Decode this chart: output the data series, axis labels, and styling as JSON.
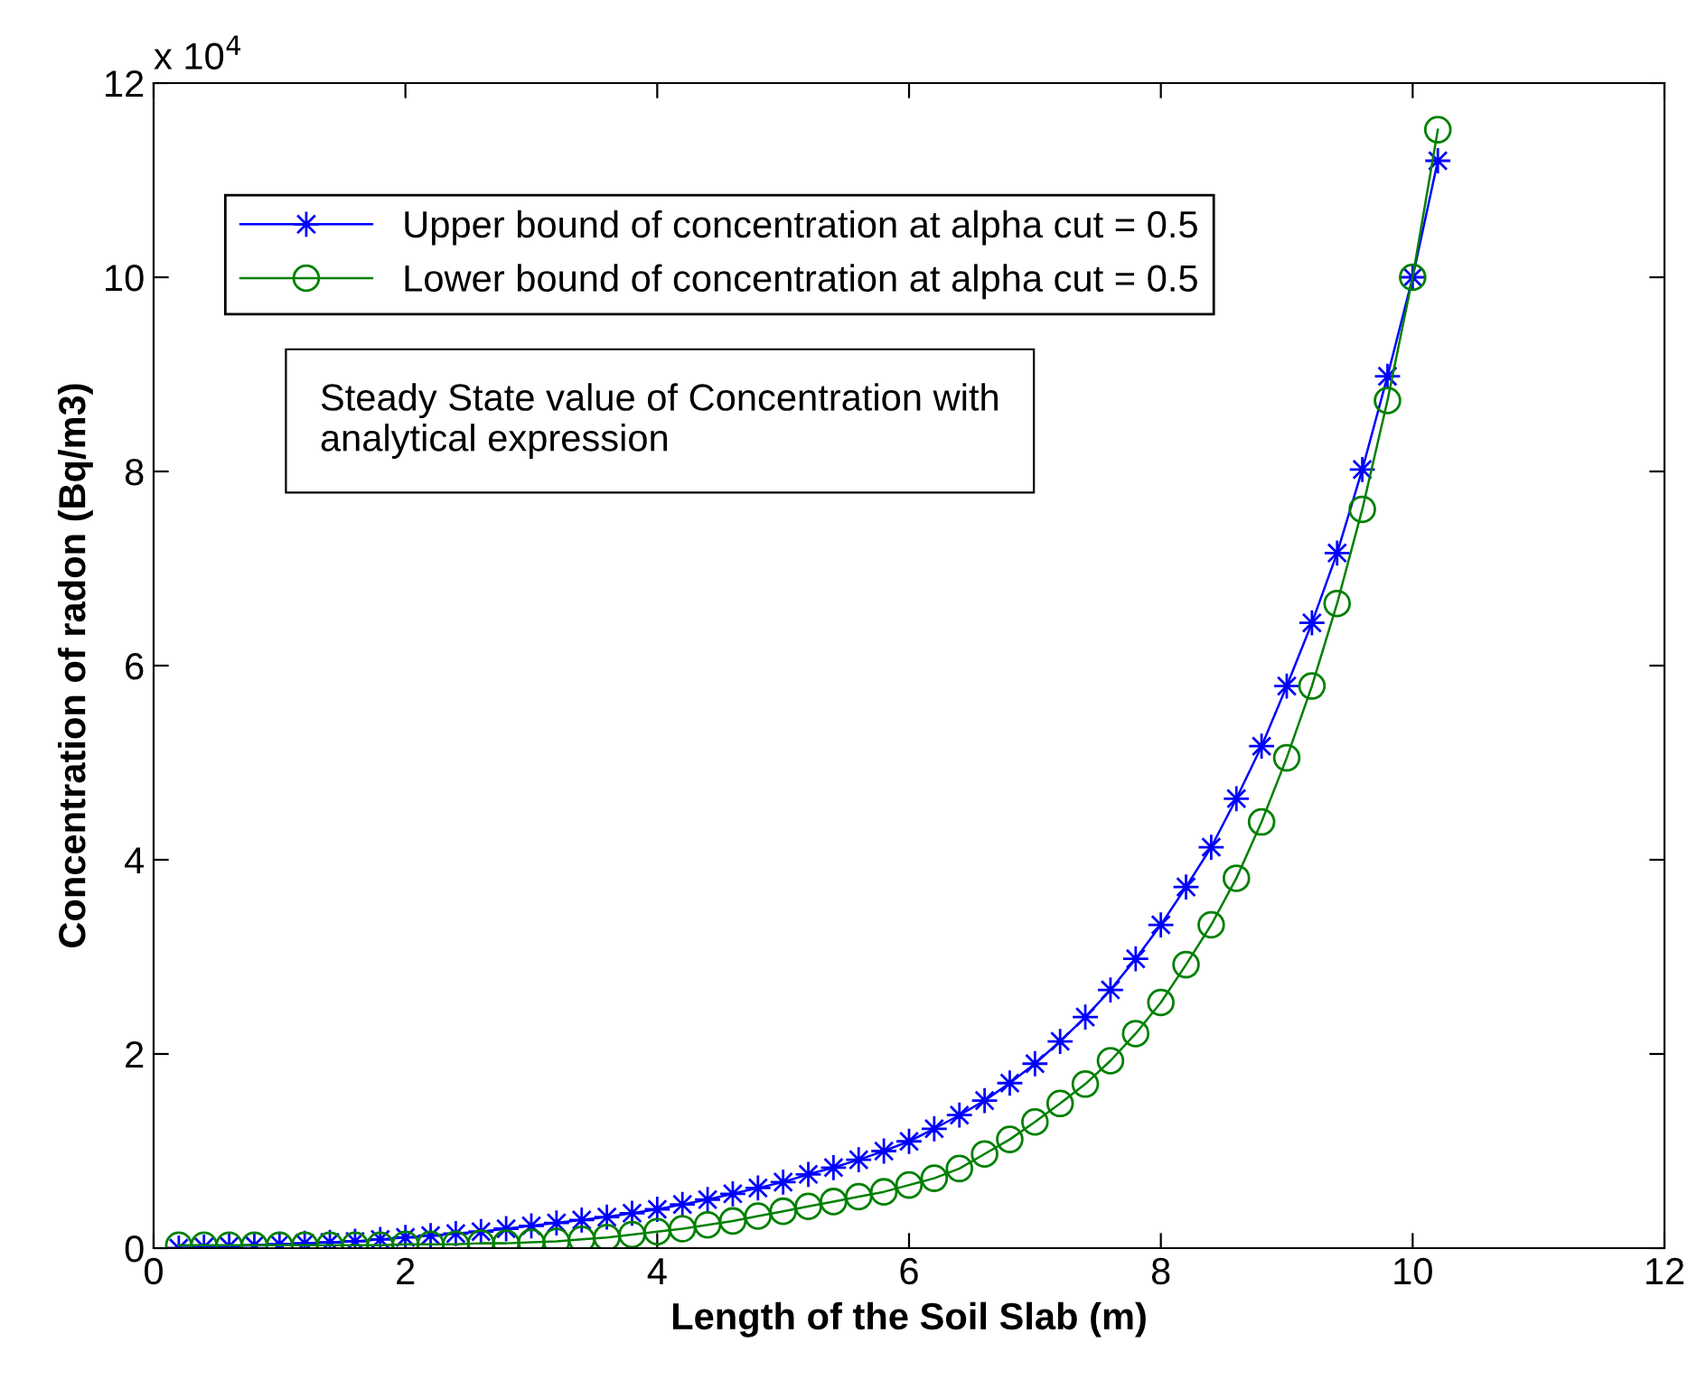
{
  "chart_data": {
    "type": "line",
    "xlabel": "Length of the Soil Slab (m)",
    "ylabel": "Concentration of radon (Bq/m3)",
    "x": [
      0.2,
      0.4,
      0.6,
      0.8,
      1.0,
      1.2,
      1.4,
      1.6,
      1.8,
      2.0,
      2.2,
      2.4,
      2.6,
      2.8,
      3.0,
      3.2,
      3.4,
      3.6,
      3.8,
      4.0,
      4.2,
      4.4,
      4.6,
      4.8,
      5.0,
      5.2,
      5.4,
      5.6,
      5.8,
      6.0,
      6.2,
      6.4,
      6.6,
      6.8,
      7.0,
      7.2,
      7.4,
      7.6,
      7.8,
      8.0,
      8.2,
      8.4,
      8.6,
      8.8,
      9.0,
      9.2,
      9.4,
      9.6,
      9.8,
      10.0,
      10.2
    ],
    "series": [
      {
        "name": "Upper bound of concentration at alpha cut = 0.5",
        "color": "#0000ff",
        "marker": "star",
        "values": [
          0,
          0.01,
          0.02,
          0.03,
          0.04,
          0.05,
          0.06,
          0.07,
          0.09,
          0.11,
          0.13,
          0.15,
          0.17,
          0.2,
          0.23,
          0.26,
          0.29,
          0.32,
          0.36,
          0.4,
          0.45,
          0.5,
          0.56,
          0.62,
          0.68,
          0.76,
          0.83,
          0.91,
          1.0,
          1.1,
          1.23,
          1.37,
          1.52,
          1.7,
          1.9,
          2.13,
          2.38,
          2.66,
          2.98,
          3.33,
          3.72,
          4.13,
          4.63,
          5.17,
          5.79,
          6.44,
          7.16,
          8.02,
          8.98,
          10.0,
          11.2
        ]
      },
      {
        "name": "Lower bound of concentration at alpha cut = 0.5",
        "color": "#008000",
        "marker": "circle",
        "values": [
          0.03,
          0.03,
          0.03,
          0.03,
          0.03,
          0.03,
          0.03,
          0.03,
          0.03,
          0.04,
          0.04,
          0.04,
          0.05,
          0.05,
          0.06,
          0.07,
          0.09,
          0.11,
          0.14,
          0.17,
          0.2,
          0.24,
          0.28,
          0.33,
          0.38,
          0.43,
          0.48,
          0.53,
          0.58,
          0.65,
          0.72,
          0.82,
          0.97,
          1.12,
          1.3,
          1.49,
          1.69,
          1.93,
          2.21,
          2.53,
          2.92,
          3.33,
          3.81,
          4.39,
          5.05,
          5.79,
          6.64,
          7.61,
          8.73,
          10.0,
          11.52
        ]
      }
    ],
    "xlim": [
      0,
      12
    ],
    "xticks": [
      0,
      2,
      4,
      6,
      8,
      10,
      12
    ],
    "ylim": [
      0,
      12
    ],
    "yticks": [
      0,
      2,
      4,
      6,
      8,
      10,
      12
    ],
    "annotations": [
      "x 10$^{4}$",
      "Steady State value of Concentration with\nanalytical expression"
    ],
    "legend": "top left",
    "grid": false
  }
}
